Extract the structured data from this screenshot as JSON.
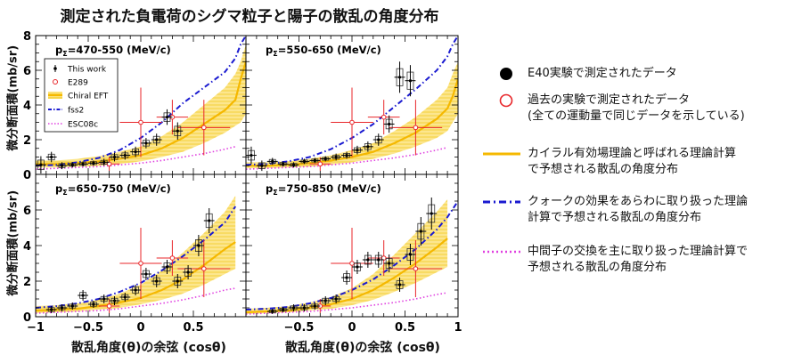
{
  "title": "測定された負電荷のシグマ粒子と陽子の散乱の角度分布",
  "ylabel": "微分断面積(mb/sr)",
  "xlabel": "散乱角度(θ)の余弦 (cosθ)",
  "colors": {
    "this_work": "#000000",
    "e289": "#e8262a",
    "chiral_eft": "#f5b800",
    "chiral_band": "#fbe27a",
    "fss2": "#1a1ad0",
    "esc08c": "#e040e0"
  },
  "inset_legend": {
    "this_work": "This work",
    "e289": "E289",
    "chiral": "Chiral EFT",
    "fss2": "fss2",
    "esc08c": "ESC08c"
  },
  "right_legend": [
    {
      "id": "e40",
      "marker": "filled-circle",
      "line1": "E40実験で測定されたデータ",
      "line2": ""
    },
    {
      "id": "past",
      "marker": "open-circle",
      "line1": "過去の実験で測定されたデータ",
      "line2": "(全ての運動量で同じデータを示している)"
    },
    {
      "id": "chiral",
      "marker": "solid-line",
      "line1": "カイラル有効場理論と呼ばれる理論計算",
      "line2": "で予想される散乱の角度分布"
    },
    {
      "id": "fss2",
      "marker": "dashdot-line",
      "line1": "クォークの効果をあらわに取り扱った理論",
      "line2": "計算で予想される散乱の角度分布"
    },
    {
      "id": "esc08c",
      "marker": "dotted-line",
      "line1": "中間子の交換を主に取り扱った理論計算で",
      "line2": "予想される散乱の角度分布"
    }
  ],
  "chart_data": [
    {
      "type": "scatter",
      "panel_label": "p",
      "panel_sub": "Σ",
      "panel_range": "=470-550 (MeV/c)",
      "xlim": [
        -1,
        1
      ],
      "ylim": [
        0,
        8
      ],
      "yticks": [
        0,
        2,
        4,
        6,
        8
      ],
      "xticks": [],
      "this_work": [
        {
          "x": -0.95,
          "y": 0.55,
          "ey": 0.5
        },
        {
          "x": -0.85,
          "y": 1.0,
          "ey": 0.3
        },
        {
          "x": -0.75,
          "y": 0.5,
          "ey": 0.2
        },
        {
          "x": -0.65,
          "y": 0.55,
          "ey": 0.15
        },
        {
          "x": -0.55,
          "y": 0.6,
          "ey": 0.15
        },
        {
          "x": -0.45,
          "y": 0.65,
          "ey": 0.15
        },
        {
          "x": -0.35,
          "y": 0.7,
          "ey": 0.2
        },
        {
          "x": -0.25,
          "y": 1.0,
          "ey": 0.25
        },
        {
          "x": -0.15,
          "y": 1.1,
          "ey": 0.25
        },
        {
          "x": -0.05,
          "y": 1.3,
          "ey": 0.3
        },
        {
          "x": 0.05,
          "y": 1.8,
          "ey": 0.3
        },
        {
          "x": 0.15,
          "y": 2.0,
          "ey": 0.35
        },
        {
          "x": 0.25,
          "y": 3.3,
          "ey": 0.45
        },
        {
          "x": 0.35,
          "y": 2.5,
          "ey": 0.5
        }
      ],
      "e289": [
        {
          "x": -0.3,
          "y": 0.6,
          "ex": 0.1,
          "ey": 0.4
        },
        {
          "x": 0.0,
          "y": 3.0,
          "ex": 0.2,
          "ey": 2.0
        },
        {
          "x": 0.3,
          "y": 3.3,
          "ex": 0.15,
          "ey": 1.0
        },
        {
          "x": 0.6,
          "y": 2.7,
          "ex": 0.25,
          "ey": 1.6
        }
      ],
      "chiral": {
        "x": [
          -1,
          -0.8,
          -0.6,
          -0.4,
          -0.2,
          0,
          0.2,
          0.4,
          0.6,
          0.8,
          0.9,
          0.95,
          1
        ],
        "y": [
          0.6,
          0.6,
          0.65,
          0.75,
          0.9,
          1.1,
          1.5,
          2.1,
          2.9,
          3.7,
          4.3,
          5.5,
          6.5
        ],
        "band_lo": [
          0.4,
          0.4,
          0.45,
          0.5,
          0.6,
          0.75,
          1.0,
          1.3,
          1.8,
          2.4,
          2.8,
          3.0,
          3.5
        ],
        "band_hi": [
          0.8,
          0.8,
          0.9,
          1.05,
          1.3,
          1.6,
          2.2,
          3.0,
          4.0,
          5.0,
          5.8,
          6.5,
          7.5
        ]
      },
      "fss2": {
        "x": [
          -1,
          -0.8,
          -0.6,
          -0.4,
          -0.2,
          0,
          0.2,
          0.4,
          0.6,
          0.8,
          0.9,
          0.95,
          1
        ],
        "y": [
          0.5,
          0.55,
          0.7,
          0.95,
          1.4,
          2.1,
          3.0,
          4.1,
          5.0,
          5.9,
          6.7,
          7.5,
          8.0
        ]
      },
      "esc08c": {
        "x": [
          -1,
          -0.8,
          -0.6,
          -0.4,
          -0.2,
          0,
          0.2,
          0.4,
          0.6,
          0.8,
          0.9
        ],
        "y": [
          0.3,
          0.35,
          0.4,
          0.45,
          0.55,
          0.65,
          0.8,
          1.0,
          1.2,
          1.45,
          1.6
        ]
      }
    },
    {
      "type": "scatter",
      "panel_label": "p",
      "panel_sub": "Σ",
      "panel_range": "=550-650 (MeV/c)",
      "xlim": [
        -1,
        1
      ],
      "ylim": [
        0,
        8
      ],
      "yticks": [
        0,
        2,
        4,
        6,
        8
      ],
      "xticks": [],
      "this_work": [
        {
          "x": -0.95,
          "y": 1.1,
          "ey": 0.5
        },
        {
          "x": -0.85,
          "y": 0.5,
          "ey": 0.3
        },
        {
          "x": -0.75,
          "y": 0.75,
          "ey": 0.2
        },
        {
          "x": -0.65,
          "y": 0.6,
          "ey": 0.15
        },
        {
          "x": -0.55,
          "y": 0.55,
          "ey": 0.15
        },
        {
          "x": -0.45,
          "y": 0.75,
          "ey": 0.15
        },
        {
          "x": -0.35,
          "y": 0.8,
          "ey": 0.15
        },
        {
          "x": -0.25,
          "y": 0.9,
          "ey": 0.15
        },
        {
          "x": -0.15,
          "y": 1.0,
          "ey": 0.2
        },
        {
          "x": -0.05,
          "y": 1.1,
          "ey": 0.2
        },
        {
          "x": 0.05,
          "y": 1.4,
          "ey": 0.25
        },
        {
          "x": 0.15,
          "y": 1.6,
          "ey": 0.3
        },
        {
          "x": 0.25,
          "y": 2.0,
          "ey": 0.35
        },
        {
          "x": 0.35,
          "y": 2.9,
          "ey": 0.5
        },
        {
          "x": 0.45,
          "y": 5.6,
          "ey": 0.9
        },
        {
          "x": 0.55,
          "y": 5.4,
          "ey": 0.9
        }
      ],
      "e289": [
        {
          "x": -0.3,
          "y": 0.6,
          "ex": 0.1,
          "ey": 0.4
        },
        {
          "x": 0.0,
          "y": 3.0,
          "ex": 0.2,
          "ey": 2.0
        },
        {
          "x": 0.3,
          "y": 3.3,
          "ex": 0.15,
          "ey": 1.0
        },
        {
          "x": 0.6,
          "y": 2.7,
          "ex": 0.25,
          "ey": 1.6
        }
      ],
      "chiral": {
        "x": [
          -1,
          -0.8,
          -0.6,
          -0.4,
          -0.2,
          0,
          0.2,
          0.4,
          0.6,
          0.8,
          0.9,
          0.95,
          1
        ],
        "y": [
          0.5,
          0.5,
          0.55,
          0.65,
          0.8,
          1.0,
          1.3,
          1.8,
          2.4,
          3.2,
          3.8,
          4.5,
          5.5
        ],
        "band_lo": [
          0.35,
          0.35,
          0.4,
          0.45,
          0.55,
          0.7,
          0.9,
          1.2,
          1.6,
          2.1,
          2.5,
          3.0,
          3.5
        ],
        "band_hi": [
          0.7,
          0.7,
          0.75,
          0.9,
          1.1,
          1.4,
          1.8,
          2.5,
          3.3,
          4.3,
          5.0,
          5.8,
          6.5
        ]
      },
      "fss2": {
        "x": [
          -1,
          -0.8,
          -0.6,
          -0.4,
          -0.2,
          0,
          0.2,
          0.4,
          0.6,
          0.8,
          0.9,
          0.95,
          1
        ],
        "y": [
          0.55,
          0.6,
          0.75,
          1.0,
          1.45,
          2.1,
          2.9,
          3.9,
          4.9,
          6.0,
          6.8,
          7.5,
          8.0
        ]
      },
      "esc08c": {
        "x": [
          -1,
          -0.8,
          -0.6,
          -0.4,
          -0.2,
          0,
          0.2,
          0.4,
          0.6,
          0.8,
          0.9
        ],
        "y": [
          0.3,
          0.35,
          0.4,
          0.45,
          0.55,
          0.65,
          0.8,
          0.95,
          1.15,
          1.4,
          1.55
        ]
      }
    },
    {
      "type": "scatter",
      "panel_label": "p",
      "panel_sub": "Σ",
      "panel_range": "=650-750 (MeV/c)",
      "xlim": [
        -1,
        1
      ],
      "ylim": [
        0,
        8
      ],
      "yticks": [
        0,
        2,
        4,
        6
      ],
      "xticks": [
        -1,
        -0.5,
        0,
        0.5
      ],
      "this_work": [
        {
          "x": -0.85,
          "y": 0.4,
          "ey": 0.2
        },
        {
          "x": -0.75,
          "y": 0.5,
          "ey": 0.2
        },
        {
          "x": -0.65,
          "y": 0.6,
          "ey": 0.2
        },
        {
          "x": -0.55,
          "y": 1.2,
          "ey": 0.3
        },
        {
          "x": -0.45,
          "y": 0.7,
          "ey": 0.2
        },
        {
          "x": -0.35,
          "y": 1.0,
          "ey": 0.25
        },
        {
          "x": -0.25,
          "y": 0.9,
          "ey": 0.25
        },
        {
          "x": -0.15,
          "y": 1.1,
          "ey": 0.25
        },
        {
          "x": -0.05,
          "y": 1.5,
          "ey": 0.3
        },
        {
          "x": 0.05,
          "y": 2.4,
          "ey": 0.35
        },
        {
          "x": 0.15,
          "y": 2.0,
          "ey": 0.35
        },
        {
          "x": 0.25,
          "y": 2.8,
          "ey": 0.4
        },
        {
          "x": 0.35,
          "y": 2.0,
          "ey": 0.4
        },
        {
          "x": 0.45,
          "y": 2.5,
          "ey": 0.4
        },
        {
          "x": 0.55,
          "y": 4.0,
          "ey": 0.6
        },
        {
          "x": 0.65,
          "y": 5.4,
          "ey": 0.7
        }
      ],
      "e289": [
        {
          "x": -0.3,
          "y": 0.6,
          "ex": 0.1,
          "ey": 0.4
        },
        {
          "x": 0.0,
          "y": 3.0,
          "ex": 0.2,
          "ey": 2.0
        },
        {
          "x": 0.3,
          "y": 3.3,
          "ex": 0.15,
          "ey": 1.0
        },
        {
          "x": 0.6,
          "y": 2.7,
          "ex": 0.25,
          "ey": 1.6
        }
      ],
      "chiral": {
        "x": [
          -1,
          -0.8,
          -0.6,
          -0.4,
          -0.2,
          0,
          0.2,
          0.4,
          0.6,
          0.8,
          0.9
        ],
        "y": [
          0.35,
          0.4,
          0.45,
          0.6,
          0.8,
          1.05,
          1.5,
          2.1,
          2.9,
          3.8,
          4.2
        ],
        "band_lo": [
          0.2,
          0.25,
          0.3,
          0.4,
          0.5,
          0.7,
          0.95,
          1.3,
          1.8,
          2.4,
          2.7
        ],
        "band_hi": [
          0.6,
          0.65,
          0.75,
          0.95,
          1.3,
          1.8,
          2.6,
          3.6,
          4.7,
          5.9,
          6.8
        ]
      },
      "fss2": {
        "x": [
          -1,
          -0.8,
          -0.6,
          -0.4,
          -0.2,
          0,
          0.2,
          0.4,
          0.6,
          0.8,
          0.9
        ],
        "y": [
          0.5,
          0.6,
          0.75,
          1.0,
          1.4,
          1.9,
          2.6,
          3.4,
          4.3,
          5.3,
          6.2
        ]
      },
      "esc08c": {
        "x": [
          -1,
          -0.8,
          -0.6,
          -0.4,
          -0.2,
          0,
          0.2,
          0.4,
          0.6,
          0.8,
          0.9
        ],
        "y": [
          0.2,
          0.25,
          0.3,
          0.35,
          0.45,
          0.6,
          0.75,
          0.95,
          1.2,
          1.5,
          1.6
        ]
      }
    },
    {
      "type": "scatter",
      "panel_label": "p",
      "panel_sub": "Σ",
      "panel_range": "=750-850 (MeV/c)",
      "xlim": [
        -1,
        1
      ],
      "ylim": [
        0,
        8
      ],
      "yticks": [
        0,
        2,
        4,
        6
      ],
      "xticks": [
        -0.5,
        0,
        0.5,
        1
      ],
      "this_work": [
        {
          "x": -0.75,
          "y": 0.3,
          "ey": 0.15
        },
        {
          "x": -0.65,
          "y": 0.4,
          "ey": 0.15
        },
        {
          "x": -0.55,
          "y": 0.5,
          "ey": 0.2
        },
        {
          "x": -0.45,
          "y": 0.5,
          "ey": 0.2
        },
        {
          "x": -0.35,
          "y": 0.6,
          "ey": 0.2
        },
        {
          "x": -0.25,
          "y": 0.9,
          "ey": 0.25
        },
        {
          "x": -0.15,
          "y": 1.0,
          "ey": 0.25
        },
        {
          "x": -0.05,
          "y": 2.2,
          "ey": 0.4
        },
        {
          "x": 0.05,
          "y": 2.8,
          "ey": 0.4
        },
        {
          "x": 0.15,
          "y": 3.2,
          "ey": 0.45
        },
        {
          "x": 0.25,
          "y": 3.2,
          "ey": 0.45
        },
        {
          "x": 0.35,
          "y": 3.0,
          "ey": 0.5
        },
        {
          "x": 0.45,
          "y": 1.8,
          "ey": 0.4
        },
        {
          "x": 0.55,
          "y": 3.5,
          "ey": 0.6
        },
        {
          "x": 0.65,
          "y": 4.8,
          "ey": 0.8
        },
        {
          "x": 0.75,
          "y": 5.8,
          "ey": 0.9
        }
      ],
      "e289": [
        {
          "x": -0.3,
          "y": 0.6,
          "ex": 0.1,
          "ey": 0.4
        },
        {
          "x": 0.0,
          "y": 3.0,
          "ex": 0.2,
          "ey": 2.0
        },
        {
          "x": 0.3,
          "y": 3.3,
          "ex": 0.15,
          "ey": 1.0
        },
        {
          "x": 0.6,
          "y": 2.7,
          "ex": 0.25,
          "ey": 1.6
        }
      ],
      "chiral": {
        "x": [
          -1,
          -0.8,
          -0.6,
          -0.4,
          -0.2,
          0,
          0.2,
          0.4,
          0.6,
          0.8,
          0.9
        ],
        "y": [
          0.25,
          0.3,
          0.35,
          0.5,
          0.7,
          1.0,
          1.5,
          2.2,
          3.0,
          3.9,
          4.4
        ],
        "band_lo": [
          0.15,
          0.2,
          0.25,
          0.35,
          0.45,
          0.65,
          0.95,
          1.4,
          1.9,
          2.5,
          2.8
        ],
        "band_hi": [
          0.45,
          0.5,
          0.6,
          0.8,
          1.1,
          1.6,
          2.4,
          3.5,
          4.7,
          5.9,
          6.6
        ]
      },
      "fss2": {
        "x": [
          -1,
          -0.8,
          -0.6,
          -0.4,
          -0.2,
          0,
          0.2,
          0.4,
          0.6,
          0.8,
          0.9,
          1
        ],
        "y": [
          0.4,
          0.45,
          0.55,
          0.75,
          1.05,
          1.5,
          2.1,
          2.9,
          3.8,
          4.9,
          5.6,
          6.5
        ]
      },
      "esc08c": {
        "x": [
          -1,
          -0.8,
          -0.6,
          -0.4,
          -0.2,
          0,
          0.2,
          0.4,
          0.6,
          0.8,
          0.9
        ],
        "y": [
          0.15,
          0.2,
          0.25,
          0.3,
          0.4,
          0.5,
          0.65,
          0.8,
          1.0,
          1.25,
          1.35
        ]
      }
    }
  ]
}
